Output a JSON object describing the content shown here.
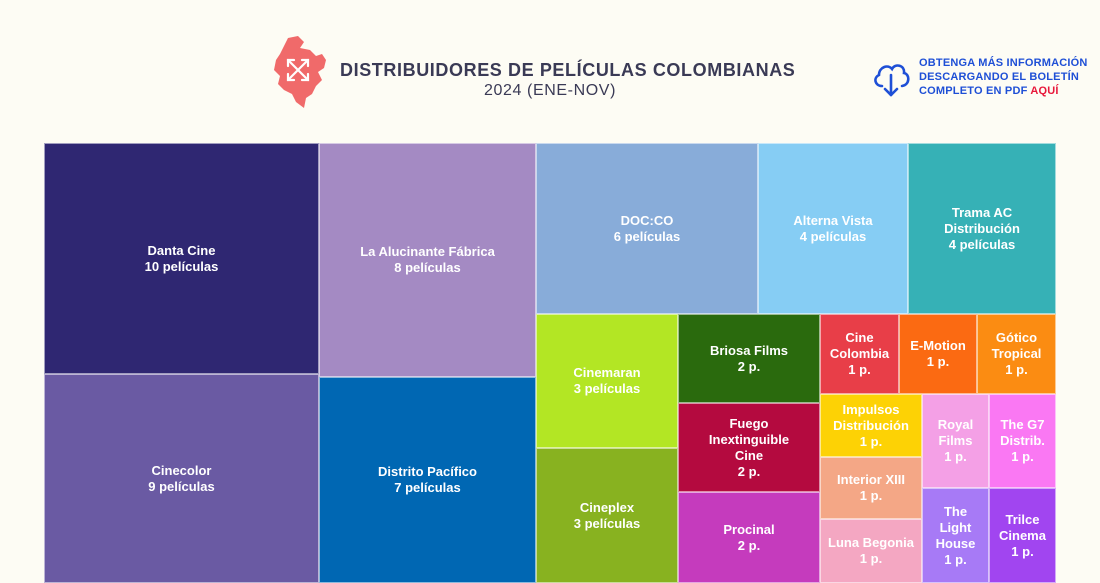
{
  "header": {
    "title": "DISTRIBUIDORES DE PELÍCULAS COLOMBIANAS",
    "subtitle": "2024 (ENE-NOV)",
    "logo_icon": "colombia-map-icon",
    "logo_color": "#f06a6a"
  },
  "download": {
    "icon": "cloud-download-icon",
    "line1": "OBTENGA MÁS INFORMACIÓN",
    "line2": "DESCARGANDO EL BOLETÍN",
    "line3_prefix": "COMPLETO EN PDF ",
    "line3_link": "AQUÍ",
    "color": "#1e4fd6",
    "link_color": "#e8173a"
  },
  "chart_data": {
    "type": "treemap",
    "unit": "películas",
    "items": [
      {
        "name": "Danta Cine",
        "value": 10,
        "label": "Danta Cine\n10 películas",
        "color": "#2f2772"
      },
      {
        "name": "Cinecolor",
        "value": 9,
        "label": "Cinecolor\n9 películas",
        "color": "#6a5aa3"
      },
      {
        "name": "La Alucinante Fábrica",
        "value": 8,
        "label": "La Alucinante Fábrica\n8 películas",
        "color": "#a48ac3"
      },
      {
        "name": "Distrito Pacífico",
        "value": 7,
        "label": "Distrito Pacífico\n7 películas",
        "color": "#0067b3"
      },
      {
        "name": "DOC:CO",
        "value": 6,
        "label": "DOC:CO\n6 películas",
        "color": "#88acd9"
      },
      {
        "name": "Alterna Vista",
        "value": 4,
        "label": "Alterna Vista\n4 películas",
        "color": "#86cdf4"
      },
      {
        "name": "Trama AC Distribución",
        "value": 4,
        "label": "Trama AC\nDistribución\n4 películas",
        "color": "#36b1b6"
      },
      {
        "name": "Cinemaran",
        "value": 3,
        "label": "Cinemaran\n3 películas",
        "color": "#b3e624"
      },
      {
        "name": "Cineplex",
        "value": 3,
        "label": "Cineplex\n3 películas",
        "color": "#88b220"
      },
      {
        "name": "Briosa Films",
        "value": 2,
        "label": "Briosa Films\n2 p.",
        "color": "#2a6a0d"
      },
      {
        "name": "Fuego Inextinguible Cine",
        "value": 2,
        "label": "Fuego\nInextinguible\nCine\n2 p.",
        "color": "#b40a3f"
      },
      {
        "name": "Procinal",
        "value": 2,
        "label": "Procinal\n2 p.",
        "color": "#c53bbd"
      },
      {
        "name": "Cine Colombia",
        "value": 1,
        "label": "Cine\nColombia\n1 p.",
        "color": "#e83e48"
      },
      {
        "name": "E-Motion",
        "value": 1,
        "label": "E-Motion\n1 p.",
        "color": "#fb6a12"
      },
      {
        "name": "Gótico Tropical",
        "value": 1,
        "label": "Gótico\nTropical\n1 p.",
        "color": "#fb8c12"
      },
      {
        "name": "Impulsos Distribución",
        "value": 1,
        "label": "Impulsos\nDistribución\n1 p.",
        "color": "#fdd205"
      },
      {
        "name": "Interior XIII",
        "value": 1,
        "label": "Interior XIII\n1 p.",
        "color": "#f4a786"
      },
      {
        "name": "Luna Begonia",
        "value": 1,
        "label": "Luna Begonia\n1 p.",
        "color": "#f4a7c2"
      },
      {
        "name": "Royal Films",
        "value": 1,
        "label": "Royal\nFilms\n1 p.",
        "color": "#f4a0e6"
      },
      {
        "name": "The G7 Distrib.",
        "value": 1,
        "label": "The G7\nDistrib.\n1 p.",
        "color": "#fa78f3"
      },
      {
        "name": "The Light House",
        "value": 1,
        "label": "The Light\nHouse\n1 p.",
        "color": "#a77af6"
      },
      {
        "name": "Trilce Cinema",
        "value": 1,
        "label": "Trilce\nCinema\n1 p.",
        "color": "#a145f0"
      }
    ]
  }
}
